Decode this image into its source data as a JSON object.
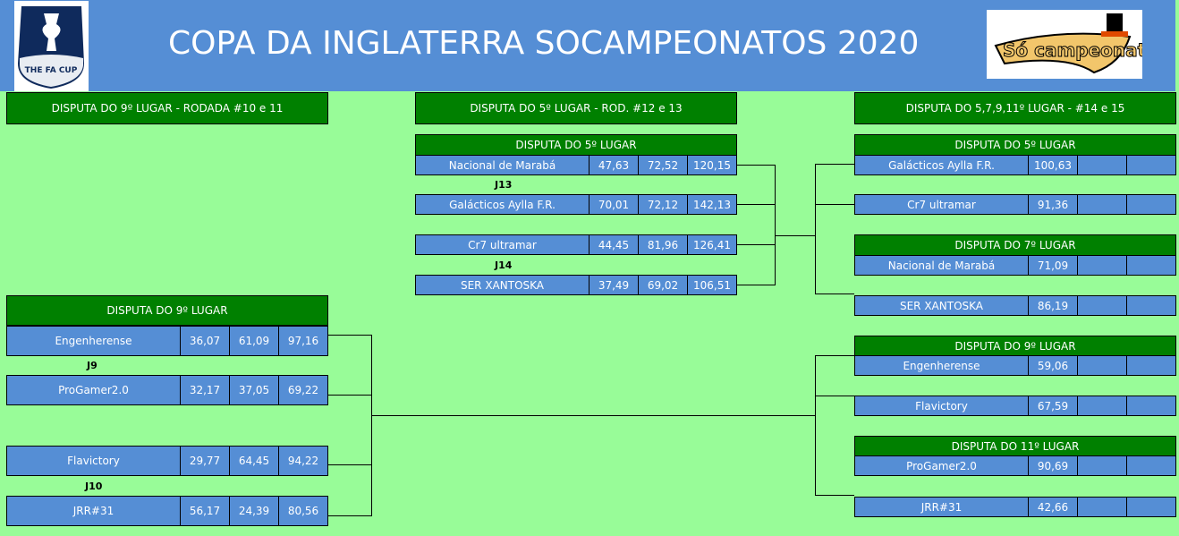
{
  "header": {
    "title": "COPA DA INGLATERRA SOCAMPEONATOS 2020",
    "logo_left": "THE FA CUP",
    "logo_right": "Só Campeonatos"
  },
  "sections": {
    "left_title": "DISPUTA DO 9º LUGAR - RODADA #10 e 11",
    "middle_title": "DISPUTA DO 5º LUGAR - ROD. #12 e 13",
    "right_title": "DISPUTA DO 5,7,9,11º LUGAR - #14 e 15"
  },
  "middle": {
    "header": "DISPUTA DO 5º LUGAR",
    "labels": [
      "J13",
      "J14"
    ],
    "rows": [
      {
        "team": "Nacional de Marabá",
        "s1": "47,63",
        "s2": "72,52",
        "total": "120,15"
      },
      {
        "team": "Galácticos Aylla F.R.",
        "s1": "70,01",
        "s2": "72,12",
        "total": "142,13"
      },
      {
        "team": "Cr7 ultramar",
        "s1": "44,45",
        "s2": "81,96",
        "total": "126,41"
      },
      {
        "team": "SER XANTOSKA",
        "s1": "37,49",
        "s2": "69,02",
        "total": "106,51"
      }
    ]
  },
  "left": {
    "header": "DISPUTA DO 9º LUGAR",
    "labels": [
      "J9",
      "J10"
    ],
    "rows": [
      {
        "team": "Engenherense",
        "s1": "36,07",
        "s2": "61,09",
        "total": "97,16"
      },
      {
        "team": "ProGamer2.0",
        "s1": "32,17",
        "s2": "37,05",
        "total": "69,22"
      },
      {
        "team": "Flavictory",
        "s1": "29,77",
        "s2": "64,45",
        "total": "94,22"
      },
      {
        "team": "JRR#31",
        "s1": "56,17",
        "s2": "24,39",
        "total": "80,56"
      }
    ]
  },
  "right": {
    "headers": [
      "DISPUTA DO 5º LUGAR",
      "DISPUTA DO 7º LUGAR",
      "DISPUTA DO 9º LUGAR",
      "DISPUTA DO 11º LUGAR"
    ],
    "rows": [
      {
        "team": "Galácticos Aylla F.R.",
        "s1": "100,63"
      },
      {
        "team": "Cr7 ultramar",
        "s1": "91,36"
      },
      {
        "team": "Nacional de Marabá",
        "s1": "71,09"
      },
      {
        "team": "SER XANTOSKA",
        "s1": "86,19"
      },
      {
        "team": "Engenherense",
        "s1": "59,06"
      },
      {
        "team": "Flavictory",
        "s1": "67,59"
      },
      {
        "team": "ProGamer2.0",
        "s1": "90,69"
      },
      {
        "team": "JRR#31",
        "s1": "42,66"
      }
    ]
  }
}
